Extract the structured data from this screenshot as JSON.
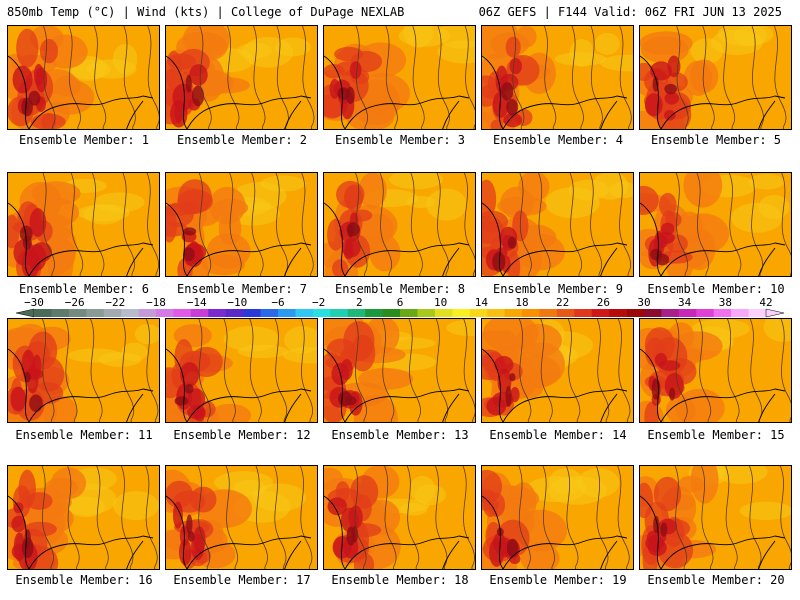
{
  "header": {
    "left": "850mb Temp (°C) | Wind (kts) | College of DuPage NEXLAB",
    "right": "06Z GEFS | F144 Valid: 06Z FRI JUN 13 2025"
  },
  "members": [
    {
      "label": "Ensemble Member: 1"
    },
    {
      "label": "Ensemble Member: 2"
    },
    {
      "label": "Ensemble Member: 3"
    },
    {
      "label": "Ensemble Member: 4"
    },
    {
      "label": "Ensemble Member: 5"
    },
    {
      "label": "Ensemble Member: 6"
    },
    {
      "label": "Ensemble Member: 7"
    },
    {
      "label": "Ensemble Member: 8"
    },
    {
      "label": "Ensemble Member: 9"
    },
    {
      "label": "Ensemble Member: 10"
    },
    {
      "label": "Ensemble Member: 11"
    },
    {
      "label": "Ensemble Member: 12"
    },
    {
      "label": "Ensemble Member: 13"
    },
    {
      "label": "Ensemble Member: 14"
    },
    {
      "label": "Ensemble Member: 15"
    },
    {
      "label": "Ensemble Member: 16"
    },
    {
      "label": "Ensemble Member: 17"
    },
    {
      "label": "Ensemble Member: 18"
    },
    {
      "label": "Ensemble Member: 19"
    },
    {
      "label": "Ensemble Member: 20"
    }
  ],
  "colorbar": {
    "tick_labels": [
      "-30",
      "-26",
      "-22",
      "-18",
      "-14",
      "-10",
      "-6",
      "-2",
      "2",
      "6",
      "10",
      "14",
      "18",
      "22",
      "26",
      "30",
      "34",
      "38",
      "42"
    ],
    "colors": [
      "#4a6a5a",
      "#5e7a6c",
      "#748a80",
      "#8a9a94",
      "#a0aab0",
      "#b7bccc",
      "#c49bd8",
      "#d47ae4",
      "#e05ae8",
      "#c83cd8",
      "#7a2ad0",
      "#5a28c8",
      "#2a3ad8",
      "#2a6ae8",
      "#2a9af0",
      "#30c8f0",
      "#28e0e0",
      "#20d0b0",
      "#20b878",
      "#1a9a3c",
      "#2a8c1c",
      "#6aa818",
      "#a8c81a",
      "#e0e020",
      "#f8f020",
      "#f8d818",
      "#f8c010",
      "#f8a800",
      "#f89000",
      "#f07810",
      "#e85818",
      "#e03820",
      "#d01818",
      "#b80c0c",
      "#9c0808",
      "#8a0a30",
      "#a8208c",
      "#c828b8",
      "#e040d8",
      "#f070f0",
      "#f8a8f8",
      "#fcd0fc"
    ]
  },
  "colors": {
    "background": "#ffffff",
    "warm_base": "#f9a600",
    "warm_mid": "#f47a10",
    "hot": "#e23c1a",
    "hotter": "#c8141a",
    "hottest": "#8e0c14",
    "cool_yellow": "#f8c818"
  }
}
